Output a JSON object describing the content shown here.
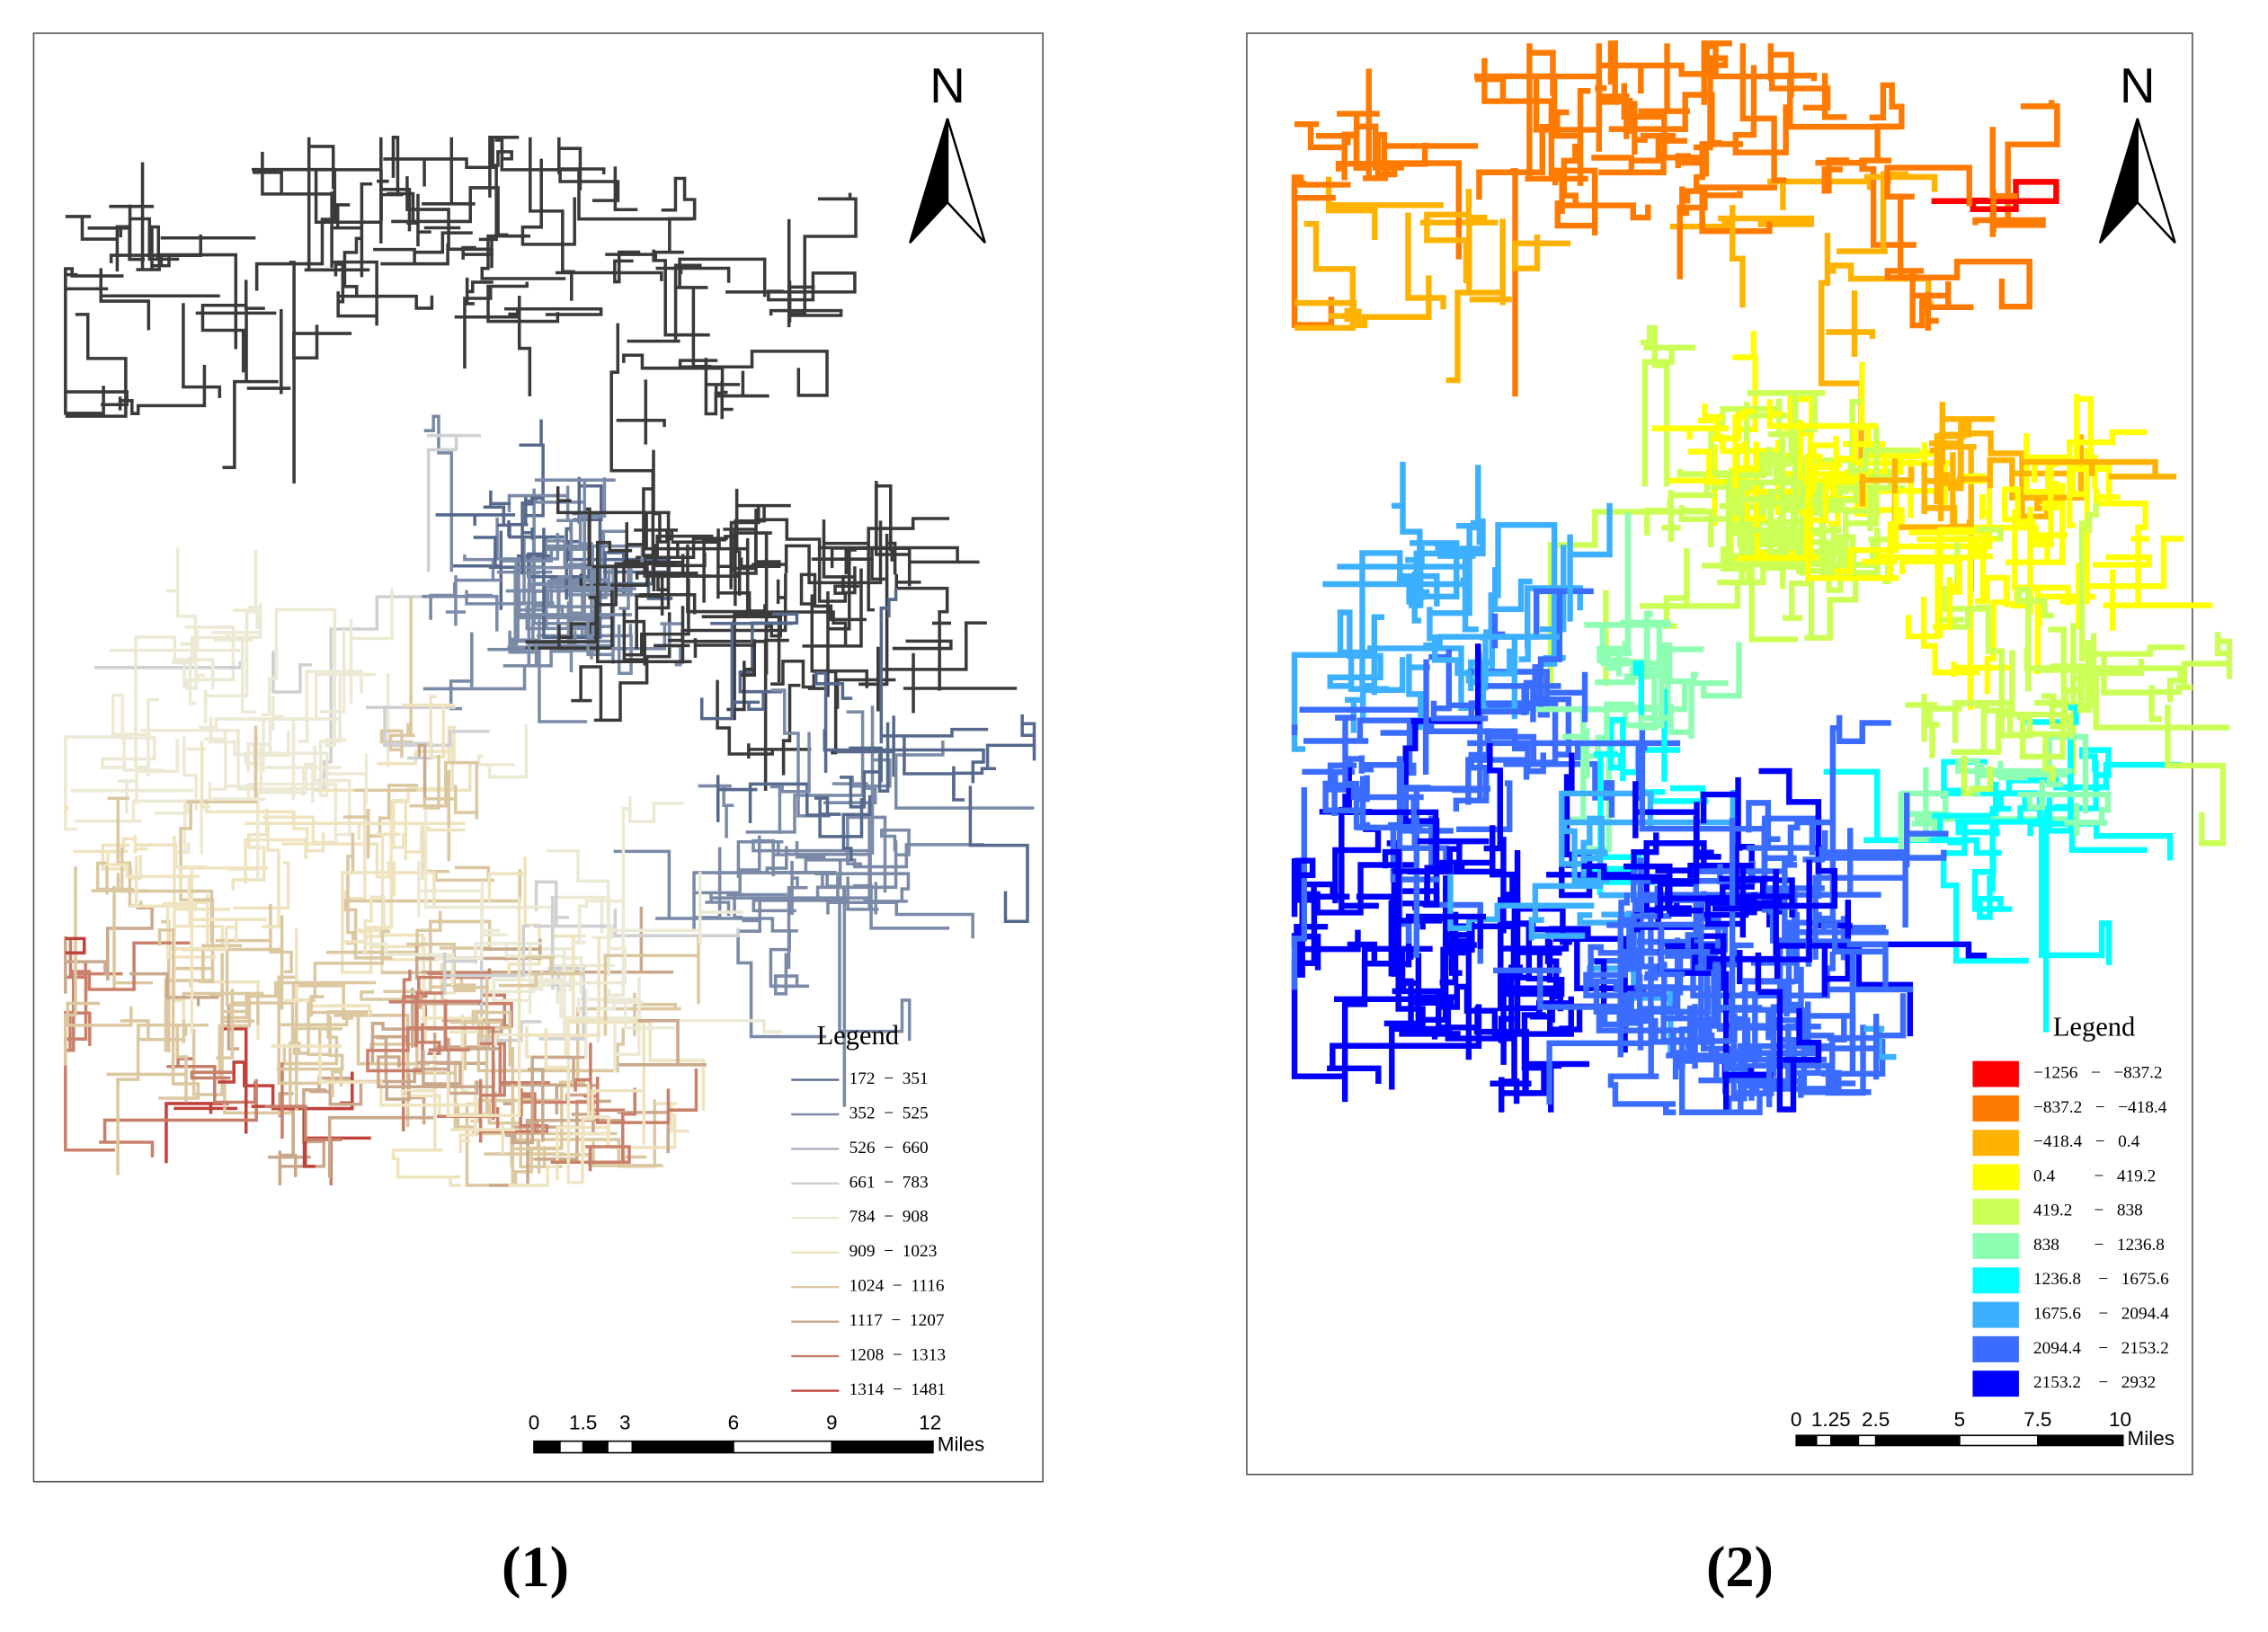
{
  "panels": [
    {
      "north": "N",
      "legend": {
        "title": "Legend",
        "items": [
          {
            "label": "172  −  351",
            "color": "#56698d"
          },
          {
            "label": "352  −  525",
            "color": "#7b8aa7"
          },
          {
            "label": "526  −  660",
            "color": "#a8aebd"
          },
          {
            "label": "661  −  783",
            "color": "#cfd0d3"
          },
          {
            "label": "784  −  908",
            "color": "#ece9d4"
          },
          {
            "label": "909  −  1023",
            "color": "#efe4bf"
          },
          {
            "label": "1024  −  1116",
            "color": "#dcc8a0"
          },
          {
            "label": "1117  −  1207",
            "color": "#caa88c"
          },
          {
            "label": "1208  −  1313",
            "color": "#c9806b"
          },
          {
            "label": "1314  −  1481",
            "color": "#c0423c"
          }
        ]
      },
      "scale_bar": {
        "ticks": [
          "0",
          "1.5",
          "3",
          "6",
          "9",
          "12"
        ],
        "unit": "Miles"
      },
      "caption": "(1)"
    },
    {
      "north": "N",
      "legend": {
        "title": "Legend",
        "items": [
          {
            "label": "−1256   −   −837.2",
            "color": "#ff0000"
          },
          {
            "label": "−837.2   −   −418.4",
            "color": "#ff7a00"
          },
          {
            "label": "−418.4   −   0.4",
            "color": "#ffb300"
          },
          {
            "label": "0.4         −   419.2",
            "color": "#ffff00"
          },
          {
            "label": "419.2     −   838",
            "color": "#ccff55"
          },
          {
            "label": "838        −   1236.8",
            "color": "#8effb2"
          },
          {
            "label": "1236.8    −   1675.6",
            "color": "#00ffff"
          },
          {
            "label": "1675.6    −   2094.4",
            "color": "#3cb0ff"
          },
          {
            "label": "2094.4    −   2153.2",
            "color": "#3a6cff"
          },
          {
            "label": "2153.2    −   2932",
            "color": "#0000ff"
          }
        ]
      },
      "scale_bar": {
        "ticks": [
          "0",
          "1.25",
          "2.5",
          "5",
          "7.5",
          "10"
        ],
        "unit": "Miles"
      },
      "caption": "(2)"
    }
  ]
}
